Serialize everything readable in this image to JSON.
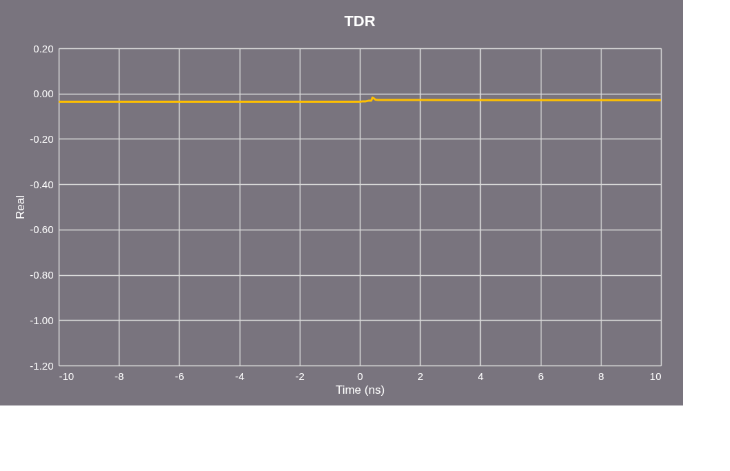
{
  "chart_data": {
    "type": "line",
    "title": "TDR",
    "xlabel": "Time (ns)",
    "ylabel": "Real",
    "series": [
      {
        "color": "#ffc000",
        "x": [
          -10,
          -5,
          0,
          0.1,
          0.2,
          0.3,
          0.38,
          0.42,
          0.46,
          0.52,
          0.6,
          2,
          5,
          10
        ],
        "values": [
          -0.036,
          -0.036,
          -0.036,
          -0.034,
          -0.034,
          -0.031,
          -0.031,
          -0.018,
          -0.02,
          -0.027,
          -0.028,
          -0.028,
          -0.029,
          -0.029
        ]
      }
    ],
    "xlim": [
      -10,
      10
    ],
    "xticks": [
      -10,
      -8,
      -6,
      -4,
      -2,
      0,
      2,
      4,
      6,
      8,
      10
    ],
    "ylim": [
      -1.2,
      0.2
    ],
    "yticks": [
      {
        "value": -1.2,
        "label": "-1.20"
      },
      {
        "value": -1.0,
        "label": "-1.00"
      },
      {
        "value": -0.8,
        "label": "-0.80"
      },
      {
        "value": -0.6,
        "label": "-0.60"
      },
      {
        "value": -0.4,
        "label": "-0.40"
      },
      {
        "value": -0.2,
        "label": "-0.20"
      },
      {
        "value": 0,
        "label": "0.00"
      },
      {
        "value": 0.2,
        "label": "0.20"
      }
    ],
    "grid": true,
    "marker": "none",
    "line_style": "solid"
  }
}
